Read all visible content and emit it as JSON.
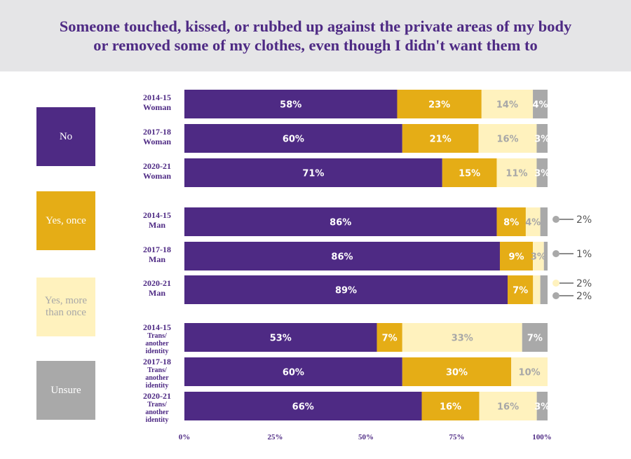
{
  "title_line1": "Someone touched, kissed, or rubbed up against the private areas of my body",
  "title_line2": "or removed some of my clothes, even though I didn't want them to",
  "chart_data": {
    "type": "bar",
    "orientation": "horizontal-stacked-100",
    "title": "Someone touched, kissed, or rubbed up against the private areas of my body or removed some of my clothes, even though I didn't want them to",
    "xlim": [
      0,
      100
    ],
    "x_ticks": [
      "0%",
      "25%",
      "50%",
      "75%",
      "100%"
    ],
    "legend_position": "left",
    "series": [
      {
        "name": "No",
        "color": "#4e2a84"
      },
      {
        "name": "Yes, once",
        "color": "#e5ad16"
      },
      {
        "name": "Yes, more than once",
        "color": "#fff2be"
      },
      {
        "name": "Unsure",
        "color": "#a9a9a9"
      }
    ],
    "groups": [
      {
        "name": "Woman",
        "rows": [
          {
            "label": [
              "2014-15",
              "Woman"
            ],
            "values": [
              58,
              23,
              14,
              4
            ],
            "labels": [
              "58%",
              "23%",
              "14%",
              "4%"
            ]
          },
          {
            "label": [
              "2017-18",
              "Woman"
            ],
            "values": [
              60,
              21,
              16,
              3
            ],
            "labels": [
              "60%",
              "21%",
              "16%",
              "3%"
            ]
          },
          {
            "label": [
              "2020-21",
              "Woman"
            ],
            "values": [
              71,
              15,
              11,
              3
            ],
            "labels": [
              "71%",
              "15%",
              "11%",
              "3%"
            ]
          }
        ]
      },
      {
        "name": "Man",
        "rows": [
          {
            "label": [
              "2014-15",
              "Man"
            ],
            "values": [
              86,
              8,
              4,
              2
            ],
            "labels": [
              "86%",
              "8%",
              "4%",
              ""
            ]
          },
          {
            "label": [
              "2017-18",
              "Man"
            ],
            "values": [
              86,
              9,
              3,
              1
            ],
            "labels": [
              "86%",
              "9%",
              "3%",
              ""
            ]
          },
          {
            "label": [
              "2020-21",
              "Man"
            ],
            "values": [
              89,
              7,
              2,
              2
            ],
            "labels": [
              "89%",
              "7%",
              "",
              ""
            ]
          }
        ]
      },
      {
        "name": "Trans/another identity",
        "rows": [
          {
            "label": [
              "2014-15",
              "Trans/",
              "another",
              "identity"
            ],
            "values": [
              53,
              7,
              33,
              7
            ],
            "labels": [
              "53%",
              "7%",
              "33%",
              "7%"
            ]
          },
          {
            "label": [
              "2017-18",
              "Trans/",
              "another",
              "identity"
            ],
            "values": [
              60,
              30,
              10,
              0
            ],
            "labels": [
              "60%",
              "30%",
              "10%",
              ""
            ]
          },
          {
            "label": [
              "2020-21",
              "Trans/",
              "another",
              "identity"
            ],
            "values": [
              66,
              16,
              16,
              3
            ],
            "labels": [
              "66%",
              "16%",
              "16%",
              "3%"
            ]
          }
        ]
      }
    ],
    "callouts": [
      {
        "group": 1,
        "row": 0,
        "series": 3,
        "text": "2%"
      },
      {
        "group": 1,
        "row": 1,
        "series": 3,
        "text": "1%"
      },
      {
        "group": 1,
        "row": 2,
        "series": 2,
        "text": "2%"
      },
      {
        "group": 1,
        "row": 2,
        "series": 3,
        "text": "2%"
      }
    ]
  }
}
